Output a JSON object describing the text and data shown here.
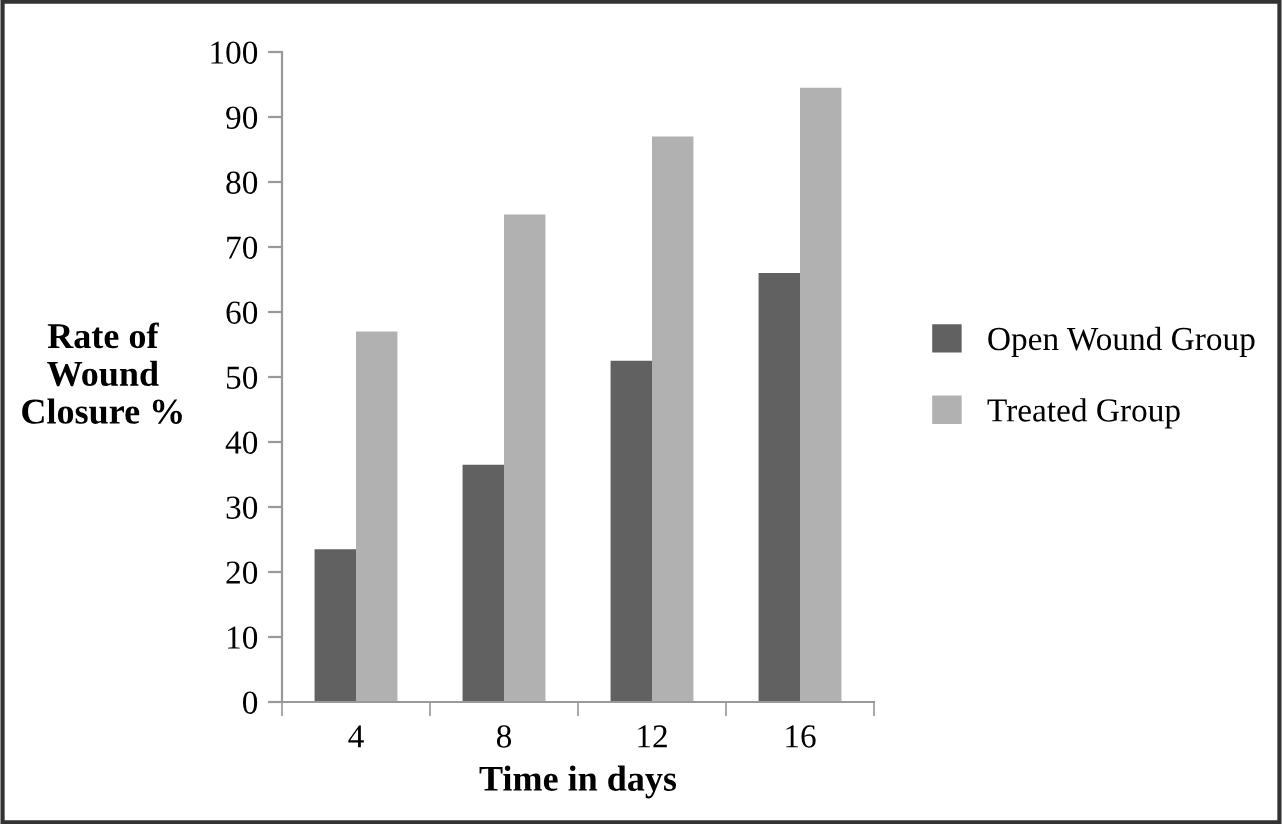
{
  "chart_data": {
    "type": "bar",
    "xlabel": "Time in days",
    "ylabel": "Rate of\nWound\nClosure %",
    "categories": [
      "4",
      "8",
      "12",
      "16"
    ],
    "series": [
      {
        "name": "Open Wound Group",
        "color": "#616161",
        "values": [
          23.5,
          36.5,
          52.5,
          66
        ]
      },
      {
        "name": "Treated Group",
        "color": "#b1b1b1",
        "values": [
          57,
          75,
          87,
          94.5
        ]
      }
    ],
    "ylim": [
      0,
      100
    ],
    "yticks": [
      0,
      10,
      20,
      30,
      40,
      50,
      60,
      70,
      80,
      90,
      100
    ],
    "grid": false,
    "legend": "right"
  }
}
